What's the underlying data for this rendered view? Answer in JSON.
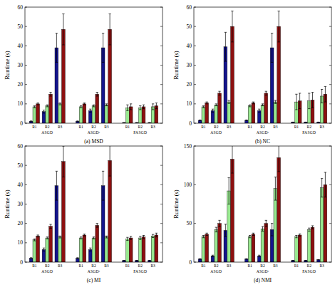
{
  "chart_data": [
    {
      "type": "bar",
      "title": "(a) MSD",
      "y_label": "Runtime (s)",
      "categories": [
        "R1",
        "R2",
        "R3",
        "R1",
        "R2",
        "R3",
        "R1",
        "R2",
        "R3"
      ],
      "category_groups": [
        "ASGD",
        "ASGDʳ",
        "FASGD"
      ],
      "ylim": [
        0,
        60
      ],
      "yticks": [
        0,
        10,
        20,
        30,
        40,
        50,
        60
      ],
      "series": [
        {
          "color": "#14148c",
          "values": [
            1,
            6,
            39,
            1,
            6.5,
            39,
            0.3,
            0.3,
            0.3
          ],
          "errors": [
            0.2,
            0.8,
            7.5,
            0.2,
            0.8,
            7.5,
            0.1,
            0.1,
            0.1
          ]
        },
        {
          "color": "#98e88f",
          "values": [
            8.5,
            9,
            10,
            8.5,
            9,
            9.5,
            8,
            8,
            8.5
          ],
          "errors": [
            0.5,
            0.5,
            0.5,
            0.5,
            0.5,
            0.5,
            1.5,
            1,
            1.5
          ]
        },
        {
          "color": "#8c1010",
          "values": [
            10,
            15,
            48.5,
            10,
            15,
            48.5,
            8.5,
            8.5,
            9
          ],
          "errors": [
            0.5,
            1,
            8,
            0.5,
            1,
            8,
            1.5,
            1,
            1.5
          ]
        }
      ]
    },
    {
      "type": "bar",
      "title": "(b) NC",
      "y_label": "Runtime (s)",
      "categories": [
        "R1",
        "R2",
        "R3",
        "R1",
        "R2",
        "R3",
        "R1",
        "R2",
        "R3"
      ],
      "category_groups": [
        "ASGD",
        "ASGDʳ",
        "FASGD"
      ],
      "ylim": [
        0,
        60
      ],
      "yticks": [
        0,
        10,
        20,
        30,
        40,
        50,
        60
      ],
      "series": [
        {
          "color": "#14148c",
          "values": [
            1.5,
            6.5,
            39.5,
            1.5,
            6.5,
            39,
            0.5,
            0.5,
            0.5
          ],
          "errors": [
            0.2,
            0.8,
            7.5,
            0.2,
            0.8,
            7.5,
            0.1,
            0.1,
            0.1
          ]
        },
        {
          "color": "#98e88f",
          "values": [
            8.5,
            9.5,
            11,
            9,
            9.5,
            11,
            11,
            11.5,
            14
          ],
          "errors": [
            0.5,
            0.5,
            0.8,
            0.5,
            0.5,
            0.8,
            4,
            4,
            3.5
          ]
        },
        {
          "color": "#8c1010",
          "values": [
            10.5,
            15.5,
            50,
            10.5,
            15.5,
            50,
            11.5,
            12,
            15
          ],
          "errors": [
            0.5,
            1,
            8,
            0.5,
            1,
            8,
            4,
            4,
            4
          ]
        }
      ]
    },
    {
      "type": "bar",
      "title": "(c) MI",
      "y_label": "Runtime (s)",
      "categories": [
        "R1",
        "R2",
        "R3",
        "R1",
        "R2",
        "R3",
        "R1",
        "R2",
        "R3"
      ],
      "category_groups": [
        "ASGD",
        "ASGDʳ",
        "FASGD"
      ],
      "ylim": [
        0,
        60
      ],
      "yticks": [
        0,
        10,
        20,
        30,
        40,
        50,
        60
      ],
      "series": [
        {
          "color": "#14148c",
          "values": [
            2,
            6.5,
            39.5,
            2,
            6.5,
            39.5,
            0.8,
            0.8,
            0.8
          ],
          "errors": [
            0.3,
            0.8,
            7.5,
            0.3,
            0.8,
            7.5,
            0.1,
            0.1,
            0.1
          ]
        },
        {
          "color": "#98e88f",
          "values": [
            11.5,
            12.5,
            13,
            12.5,
            12.5,
            13,
            12,
            12.5,
            13.5
          ],
          "errors": [
            0.5,
            0.5,
            0.5,
            0.5,
            0.5,
            0.5,
            0.8,
            0.8,
            0.8
          ]
        },
        {
          "color": "#8c1010",
          "values": [
            13.5,
            18.5,
            52,
            14,
            19,
            52.5,
            12.5,
            13,
            14
          ],
          "errors": [
            0.5,
            1,
            8,
            0.5,
            1,
            8,
            0.8,
            0.8,
            1
          ]
        }
      ]
    },
    {
      "type": "bar",
      "title": "(d) NMI",
      "y_label": "Runtime (s)",
      "categories": [
        "R1",
        "R2",
        "R3",
        "R1",
        "R2",
        "R3",
        "R1",
        "R2",
        "R3"
      ],
      "category_groups": [
        "ASGD",
        "ASGDʳ",
        "FASGD"
      ],
      "ylim": [
        0,
        150
      ],
      "yticks": [
        0,
        50,
        100,
        150
      ],
      "series": [
        {
          "color": "#14148c",
          "values": [
            4,
            8,
            41,
            4,
            8,
            42,
            2,
            2,
            3
          ],
          "errors": [
            0.5,
            1,
            8,
            0.5,
            1,
            8,
            0.3,
            0.3,
            0.3
          ]
        },
        {
          "color": "#98e88f",
          "values": [
            33,
            42,
            92,
            33,
            43,
            95,
            33,
            42,
            96
          ],
          "errors": [
            1.5,
            3,
            17,
            1.5,
            3,
            15,
            1.5,
            2,
            12
          ]
        },
        {
          "color": "#8c1010",
          "values": [
            36,
            50,
            133,
            36,
            50,
            135,
            35,
            45,
            100
          ],
          "errors": [
            1.5,
            4,
            18,
            1.5,
            4,
            18,
            1.5,
            2,
            16
          ]
        }
      ]
    }
  ]
}
